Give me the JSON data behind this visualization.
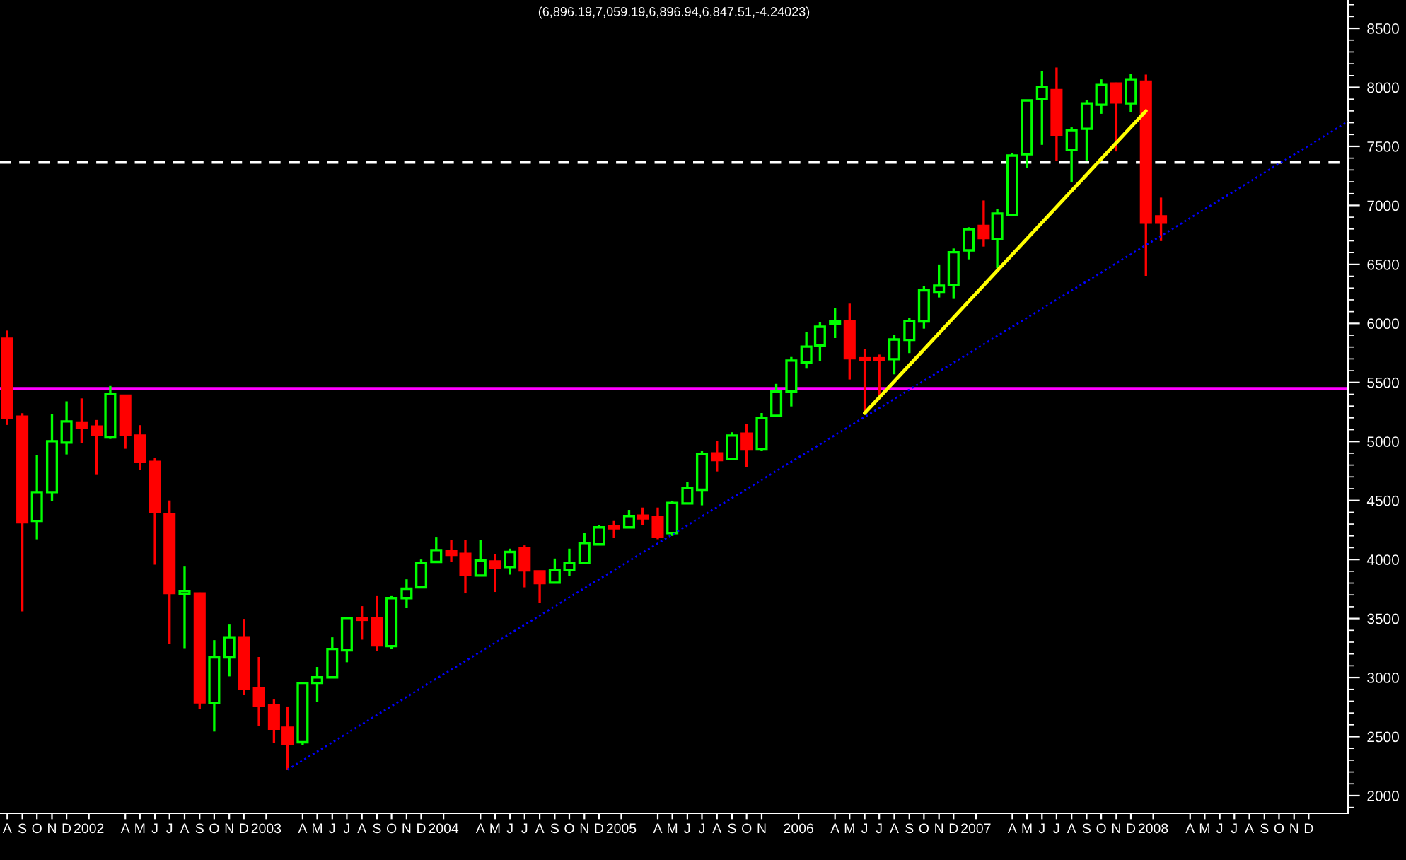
{
  "chart_data": {
    "type": "candlestick",
    "title": "(6,896.19,7,059.19,6,896.94,6,847.51,-4.24023)",
    "series": [
      {
        "x": [
          "2001-08",
          "2001-09",
          "2001-10",
          "2001-11",
          "2001-12",
          "2002-01",
          "2002-02",
          "2002-03",
          "2002-04",
          "2002-05",
          "2002-06",
          "2002-07",
          "2002-08",
          "2002-09",
          "2002-10",
          "2002-11",
          "2002-12",
          "2003-01",
          "2003-02",
          "2003-03",
          "2003-04",
          "2003-05",
          "2003-06",
          "2003-07",
          "2003-08",
          "2003-09",
          "2003-10",
          "2003-11",
          "2003-12",
          "2004-01",
          "2004-02",
          "2004-03",
          "2004-04",
          "2004-05",
          "2004-06",
          "2004-07",
          "2004-08",
          "2004-09",
          "2004-10",
          "2004-11",
          "2004-12",
          "2005-01",
          "2005-02",
          "2005-03",
          "2005-04",
          "2005-05",
          "2005-06",
          "2005-07",
          "2005-08",
          "2005-09",
          "2005-10",
          "2005-11",
          "2005-12",
          "2006-01",
          "2006-02",
          "2006-03",
          "2006-04",
          "2006-05",
          "2006-06",
          "2006-07",
          "2006-08",
          "2006-09",
          "2006-10",
          "2006-11",
          "2006-12",
          "2007-01",
          "2007-02",
          "2007-03",
          "2007-04",
          "2007-05",
          "2007-06",
          "2007-07",
          "2007-08",
          "2007-09",
          "2007-10",
          "2007-11",
          "2007-12",
          "2008-01",
          "2008-02"
        ],
        "ohlc": [
          [
            5870,
            5940,
            5140,
            5200
          ],
          [
            5210,
            5240,
            3560,
            4315
          ],
          [
            4327,
            4886,
            4171,
            4571
          ],
          [
            4571,
            5233,
            4495,
            5002
          ],
          [
            4990,
            5340,
            4890,
            5170
          ],
          [
            5160,
            5365,
            4986,
            5114
          ],
          [
            5126,
            5182,
            4722,
            5058
          ],
          [
            5034,
            5470,
            5022,
            5405
          ],
          [
            5389,
            5395,
            4938,
            5058
          ],
          [
            5050,
            5138,
            4758,
            4830
          ],
          [
            4826,
            4862,
            3956,
            4400
          ],
          [
            4383,
            4500,
            3285,
            3716
          ],
          [
            3709,
            3940,
            3249,
            3733
          ],
          [
            3713,
            3720,
            2734,
            2790
          ],
          [
            2787,
            3317,
            2543,
            3170
          ],
          [
            3170,
            3449,
            3010,
            3341
          ],
          [
            3341,
            3497,
            2854,
            2902
          ],
          [
            2910,
            3174,
            2590,
            2758
          ],
          [
            2766,
            2814,
            2447,
            2567
          ],
          [
            2575,
            2755,
            2216,
            2435
          ],
          [
            2452,
            2960,
            2428,
            2955
          ],
          [
            2955,
            3090,
            2794,
            3002
          ],
          [
            3002,
            3341,
            2995,
            3242
          ],
          [
            3230,
            3510,
            3130,
            3505
          ],
          [
            3505,
            3605,
            3321,
            3489
          ],
          [
            3505,
            3690,
            3225,
            3273
          ],
          [
            3266,
            3690,
            3242,
            3673
          ],
          [
            3673,
            3832,
            3593,
            3752
          ],
          [
            3764,
            4000,
            3760,
            3972
          ],
          [
            3980,
            4192,
            3975,
            4080
          ],
          [
            4072,
            4168,
            3980,
            4040
          ],
          [
            4048,
            4168,
            3713,
            3872
          ],
          [
            3864,
            4168,
            3860,
            3992
          ],
          [
            3984,
            4048,
            3725,
            3932
          ],
          [
            3936,
            4092,
            3872,
            4064
          ],
          [
            4092,
            4120,
            3764,
            3908
          ],
          [
            3900,
            3905,
            3633,
            3800
          ],
          [
            3804,
            4008,
            3800,
            3912
          ],
          [
            3912,
            4092,
            3860,
            3972
          ],
          [
            3972,
            4224,
            3968,
            4140
          ],
          [
            4128,
            4291,
            4124,
            4272
          ],
          [
            4284,
            4332,
            4184,
            4264
          ],
          [
            4272,
            4420,
            4268,
            4368
          ],
          [
            4372,
            4440,
            4291,
            4348
          ],
          [
            4360,
            4440,
            4172,
            4192
          ],
          [
            4224,
            4495,
            4200,
            4479
          ],
          [
            4475,
            4655,
            4470,
            4607
          ],
          [
            4591,
            4922,
            4459,
            4895
          ],
          [
            4898,
            5006,
            4746,
            4842
          ],
          [
            4850,
            5078,
            4840,
            5050
          ],
          [
            5066,
            5150,
            4782,
            4938
          ],
          [
            4938,
            5241,
            4918,
            5201
          ],
          [
            5217,
            5488,
            5213,
            5425
          ],
          [
            5425,
            5716,
            5297,
            5685
          ],
          [
            5668,
            5928,
            5617,
            5804
          ],
          [
            5812,
            6012,
            5681,
            5972
          ],
          [
            5996,
            6132,
            5876,
            6016
          ],
          [
            6020,
            6168,
            5525,
            5705
          ],
          [
            5705,
            5784,
            5233,
            5690
          ],
          [
            5705,
            5736,
            5397,
            5690
          ],
          [
            5697,
            5904,
            5569,
            5864
          ],
          [
            5860,
            6044,
            5749,
            6020
          ],
          [
            6016,
            6316,
            5956,
            6280
          ],
          [
            6268,
            6500,
            6220,
            6320
          ],
          [
            6328,
            6635,
            6208,
            6603
          ],
          [
            6619,
            6815,
            6543,
            6799
          ],
          [
            6826,
            7042,
            6651,
            6723
          ],
          [
            6715,
            6970,
            6467,
            6931
          ],
          [
            6919,
            7446,
            6907,
            7422
          ],
          [
            7434,
            7895,
            7314,
            7889
          ],
          [
            7901,
            8140,
            7513,
            8004
          ],
          [
            7976,
            8168,
            7377,
            7597
          ],
          [
            7469,
            7661,
            7198,
            7637
          ],
          [
            7649,
            7889,
            7381,
            7865
          ],
          [
            7853,
            8068,
            7776,
            8020
          ],
          [
            8032,
            8040,
            7457,
            7872
          ],
          [
            7865,
            8116,
            7793,
            8068
          ],
          [
            8048,
            8108,
            6404,
            6854
          ],
          [
            6907,
            7066,
            6698,
            6854
          ]
        ],
        "colors": [
          "#ff0000",
          "#ff0000",
          "#00ff00",
          "#00ff00",
          "#00ff00",
          "#ff0000",
          "#ff0000",
          "#00ff00",
          "#ff0000",
          "#ff0000",
          "#ff0000",
          "#ff0000",
          "#00ff00",
          "#ff0000",
          "#00ff00",
          "#00ff00",
          "#ff0000",
          "#ff0000",
          "#ff0000",
          "#ff0000",
          "#00ff00",
          "#00ff00",
          "#00ff00",
          "#00ff00",
          "#ff0000",
          "#ff0000",
          "#00ff00",
          "#00ff00",
          "#00ff00",
          "#00ff00",
          "#ff0000",
          "#ff0000",
          "#00ff00",
          "#ff0000",
          "#00ff00",
          "#ff0000",
          "#ff0000",
          "#00ff00",
          "#00ff00",
          "#00ff00",
          "#00ff00",
          "#ff0000",
          "#00ff00",
          "#ff0000",
          "#ff0000",
          "#00ff00",
          "#00ff00",
          "#00ff00",
          "#ff0000",
          "#00ff00",
          "#ff0000",
          "#00ff00",
          "#00ff00",
          "#00ff00",
          "#00ff00",
          "#00ff00",
          "#00ff00",
          "#ff0000",
          "#ff0000",
          "#ff0000",
          "#00ff00",
          "#00ff00",
          "#00ff00",
          "#00ff00",
          "#00ff00",
          "#00ff00",
          "#ff0000",
          "#00ff00",
          "#00ff00",
          "#00ff00",
          "#00ff00",
          "#ff0000",
          "#00ff00",
          "#00ff00",
          "#00ff00",
          "#ff0000",
          "#00ff00",
          "#ff0000",
          "#ff0000"
        ]
      },
      {
        "type": "line",
        "color": "#0000ff",
        "line_style": "dotted",
        "x": [
          "2003-03",
          "2009-02-20"
        ],
        "values": [
          2220,
          7710
        ]
      },
      {
        "type": "line",
        "color": "#ffff00",
        "line_style": "solid",
        "x": [
          "2006-06",
          "2008-01"
        ],
        "values": [
          5240,
          7800
        ]
      }
    ],
    "ref_lines": [
      {
        "axis": "y",
        "value": 5450,
        "color": "#ff00ff",
        "line_style": "solid"
      },
      {
        "axis": "y",
        "value": 7365,
        "color": "#ffffff",
        "line_style": "dashed"
      }
    ],
    "xlim": [
      "2001-07-17",
      "2009-02-20"
    ],
    "xticks": [
      {
        "value": "2001-08",
        "label": "A"
      },
      {
        "value": "2001-09",
        "label": "S"
      },
      {
        "value": "2001-10",
        "label": "O"
      },
      {
        "value": "2001-11",
        "label": "N"
      },
      {
        "value": "2001-12",
        "label": "D"
      },
      {
        "value": "2002-01-16",
        "label": "2002"
      },
      {
        "value": "2002-04",
        "label": "A"
      },
      {
        "value": "2002-05",
        "label": "M"
      },
      {
        "value": "2002-06",
        "label": "J"
      },
      {
        "value": "2002-07",
        "label": "J"
      },
      {
        "value": "2002-08",
        "label": "A"
      },
      {
        "value": "2002-09",
        "label": "S"
      },
      {
        "value": "2002-10",
        "label": "O"
      },
      {
        "value": "2002-11",
        "label": "N"
      },
      {
        "value": "2002-12",
        "label": "D"
      },
      {
        "value": "2003-01-16",
        "label": "2003"
      },
      {
        "value": "2003-04",
        "label": "A"
      },
      {
        "value": "2003-05",
        "label": "M"
      },
      {
        "value": "2003-06",
        "label": "J"
      },
      {
        "value": "2003-07",
        "label": "J"
      },
      {
        "value": "2003-08",
        "label": "A"
      },
      {
        "value": "2003-09",
        "label": "S"
      },
      {
        "value": "2003-10",
        "label": "O"
      },
      {
        "value": "2003-11",
        "label": "N"
      },
      {
        "value": "2003-12",
        "label": "D"
      },
      {
        "value": "2004-01-16",
        "label": "2004"
      },
      {
        "value": "2004-04",
        "label": "A"
      },
      {
        "value": "2004-05",
        "label": "M"
      },
      {
        "value": "2004-06",
        "label": "J"
      },
      {
        "value": "2004-07",
        "label": "J"
      },
      {
        "value": "2004-08",
        "label": "A"
      },
      {
        "value": "2004-09",
        "label": "S"
      },
      {
        "value": "2004-10",
        "label": "O"
      },
      {
        "value": "2004-11",
        "label": "N"
      },
      {
        "value": "2004-12",
        "label": "D"
      },
      {
        "value": "2005-01-16",
        "label": "2005"
      },
      {
        "value": "2005-04",
        "label": "A"
      },
      {
        "value": "2005-05",
        "label": "M"
      },
      {
        "value": "2005-06",
        "label": "J"
      },
      {
        "value": "2005-07",
        "label": "J"
      },
      {
        "value": "2005-08",
        "label": "A"
      },
      {
        "value": "2005-09",
        "label": "S"
      },
      {
        "value": "2005-10",
        "label": "O"
      },
      {
        "value": "2005-11",
        "label": "N"
      },
      {
        "value": "2006-01-16",
        "label": "2006"
      },
      {
        "value": "2006-04",
        "label": "A"
      },
      {
        "value": "2006-05",
        "label": "M"
      },
      {
        "value": "2006-06",
        "label": "J"
      },
      {
        "value": "2006-07",
        "label": "J"
      },
      {
        "value": "2006-08",
        "label": "A"
      },
      {
        "value": "2006-09",
        "label": "S"
      },
      {
        "value": "2006-10",
        "label": "O"
      },
      {
        "value": "2006-11",
        "label": "N"
      },
      {
        "value": "2006-12",
        "label": "D"
      },
      {
        "value": "2007-01-16",
        "label": "2007"
      },
      {
        "value": "2007-04",
        "label": "A"
      },
      {
        "value": "2007-05",
        "label": "M"
      },
      {
        "value": "2007-06",
        "label": "J"
      },
      {
        "value": "2007-07",
        "label": "J"
      },
      {
        "value": "2007-08",
        "label": "A"
      },
      {
        "value": "2007-09",
        "label": "S"
      },
      {
        "value": "2007-10",
        "label": "O"
      },
      {
        "value": "2007-11",
        "label": "N"
      },
      {
        "value": "2007-12",
        "label": "D"
      },
      {
        "value": "2008-01-16",
        "label": "2008"
      },
      {
        "value": "2008-04",
        "label": "A"
      },
      {
        "value": "2008-05",
        "label": "M"
      },
      {
        "value": "2008-06",
        "label": "J"
      },
      {
        "value": "2008-07",
        "label": "J"
      },
      {
        "value": "2008-08",
        "label": "A"
      },
      {
        "value": "2008-09",
        "label": "S"
      },
      {
        "value": "2008-10",
        "label": "O"
      },
      {
        "value": "2008-11",
        "label": "N"
      },
      {
        "value": "2008-12",
        "label": "D"
      }
    ],
    "ylim": [
      1850,
      8740
    ],
    "yticks": [
      {
        "value": 1900,
        "label": null
      },
      2000,
      {
        "value": 2100,
        "label": null
      },
      {
        "value": 2200,
        "label": null
      },
      {
        "value": 2300,
        "label": null
      },
      {
        "value": 2400,
        "label": null
      },
      2500,
      {
        "value": 2600,
        "label": null
      },
      {
        "value": 2700,
        "label": null
      },
      {
        "value": 2800,
        "label": null
      },
      {
        "value": 2900,
        "label": null
      },
      3000,
      {
        "value": 3100,
        "label": null
      },
      {
        "value": 3200,
        "label": null
      },
      {
        "value": 3300,
        "label": null
      },
      {
        "value": 3400,
        "label": null
      },
      3500,
      {
        "value": 3600,
        "label": null
      },
      {
        "value": 3700,
        "label": null
      },
      {
        "value": 3800,
        "label": null
      },
      {
        "value": 3900,
        "label": null
      },
      4000,
      {
        "value": 4100,
        "label": null
      },
      {
        "value": 4200,
        "label": null
      },
      {
        "value": 4300,
        "label": null
      },
      {
        "value": 4400,
        "label": null
      },
      4500,
      {
        "value": 4600,
        "label": null
      },
      {
        "value": 4700,
        "label": null
      },
      {
        "value": 4800,
        "label": null
      },
      {
        "value": 4900,
        "label": null
      },
      5000,
      {
        "value": 5100,
        "label": null
      },
      {
        "value": 5200,
        "label": null
      },
      {
        "value": 5300,
        "label": null
      },
      {
        "value": 5400,
        "label": null
      },
      5500,
      {
        "value": 5600,
        "label": null
      },
      {
        "value": 5700,
        "label": null
      },
      {
        "value": 5800,
        "label": null
      },
      {
        "value": 5900,
        "label": null
      },
      6000,
      {
        "value": 6100,
        "label": null
      },
      {
        "value": 6200,
        "label": null
      },
      {
        "value": 6300,
        "label": null
      },
      {
        "value": 6400,
        "label": null
      },
      6500,
      {
        "value": 6600,
        "label": null
      },
      {
        "value": 6700,
        "label": null
      },
      {
        "value": 6800,
        "label": null
      },
      {
        "value": 6900,
        "label": null
      },
      7000,
      {
        "value": 7100,
        "label": null
      },
      {
        "value": 7200,
        "label": null
      },
      {
        "value": 7300,
        "label": null
      },
      {
        "value": 7400,
        "label": null
      },
      7500,
      {
        "value": 7600,
        "label": null
      },
      {
        "value": 7700,
        "label": null
      },
      {
        "value": 7800,
        "label": null
      },
      {
        "value": 7900,
        "label": null
      },
      8000,
      {
        "value": 8100,
        "label": null
      },
      {
        "value": 8200,
        "label": null
      },
      {
        "value": 8300,
        "label": null
      },
      {
        "value": 8400,
        "label": null
      },
      8500,
      {
        "value": 8600,
        "label": null
      },
      {
        "value": 8700,
        "label": null
      }
    ]
  }
}
